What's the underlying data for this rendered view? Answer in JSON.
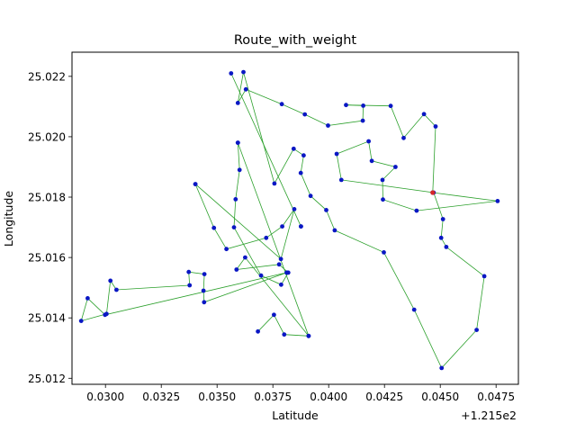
{
  "chart_data": {
    "type": "scatter",
    "title": "Route_with_weight",
    "xlabel": "Latitude",
    "ylabel": "Longitude",
    "offset_label": "+1.215e2",
    "xlim": [
      0.0285,
      0.0485
    ],
    "ylim": [
      25.0118,
      25.0228
    ],
    "x_ticks": [
      0.03,
      0.0325,
      0.035,
      0.0375,
      0.04,
      0.0425,
      0.045,
      0.0475
    ],
    "x_tick_labels": [
      "0.0300",
      "0.0325",
      "0.0350",
      "0.0375",
      "0.0400",
      "0.0425",
      "0.0450",
      "0.0475"
    ],
    "y_ticks": [
      25.012,
      25.014,
      25.016,
      25.018,
      25.02,
      25.022
    ],
    "y_tick_labels": [
      "25.012",
      "25.014",
      "25.016",
      "25.018",
      "25.020",
      "25.022"
    ],
    "grid": false,
    "colors": {
      "route": "#2ca02c",
      "stop": "#0a17c4",
      "start": "#d62728"
    },
    "start": [
      0.04466,
      25.01815
    ],
    "route": [
      [
        0.04466,
        25.01815
      ],
      [
        0.04757,
        25.01787
      ],
      [
        0.04394,
        25.01755
      ],
      [
        0.04243,
        25.01792
      ],
      [
        0.04241,
        25.01857
      ],
      [
        0.04299,
        25.019
      ],
      [
        0.04193,
        25.0192
      ],
      [
        0.04179,
        25.01985
      ],
      [
        0.04036,
        25.01943
      ],
      [
        0.04057,
        25.01857
      ],
      [
        0.0447,
        25.01815
      ],
      [
        0.04512,
        25.01727
      ],
      [
        0.04504,
        25.01665
      ],
      [
        0.04527,
        25.01635
      ],
      [
        0.04697,
        25.01538
      ],
      [
        0.04663,
        25.0136
      ],
      [
        0.04506,
        25.01234
      ],
      [
        0.04383,
        25.01427
      ],
      [
        0.04247,
        25.01617
      ],
      [
        0.04027,
        25.0169
      ],
      [
        0.03989,
        25.01757
      ],
      [
        0.03919,
        25.01804
      ],
      [
        0.03875,
        25.0188
      ],
      [
        0.03888,
        25.01938
      ],
      [
        0.03843,
        25.0196
      ],
      [
        0.03757,
        25.01845
      ],
      [
        0.03618,
        25.02214
      ],
      [
        0.03593,
        25.02112
      ],
      [
        0.03629,
        25.02157
      ],
      [
        0.0379,
        25.02108
      ],
      [
        0.03893,
        25.02074
      ],
      [
        0.03997,
        25.02037
      ],
      [
        0.04153,
        25.02053
      ],
      [
        0.04155,
        25.02103
      ],
      [
        0.04078,
        25.02105
      ],
      [
        0.04278,
        25.02102
      ],
      [
        0.04336,
        25.01996
      ],
      [
        0.04427,
        25.02075
      ],
      [
        0.04479,
        25.02034
      ],
      [
        0.04466,
        25.01815
      ],
      [
        0.04466,
        25.01815
      ]
    ],
    "route2": [
      [
        0.03876,
        25.01703
      ],
      [
        0.03563,
        25.0221
      ],
      [
        0.03876,
        25.01703
      ]
    ],
    "route3": [
      [
        0.03593,
        25.0198
      ],
      [
        0.03601,
        25.0189
      ],
      [
        0.03583,
        25.01793
      ],
      [
        0.03576,
        25.017
      ],
      [
        0.03697,
        25.0154
      ],
      [
        0.03787,
        25.0151
      ],
      [
        0.03819,
        25.0155
      ],
      [
        0.03778,
        25.01577
      ],
      [
        0.03587,
        25.0156
      ],
      [
        0.03626,
        25.016
      ],
      [
        0.0391,
        25.0134
      ],
      [
        0.03593,
        25.0198
      ]
    ],
    "route4": [
      [
        0.03403,
        25.01843
      ],
      [
        0.03486,
        25.01698
      ],
      [
        0.03542,
        25.01628
      ],
      [
        0.0372,
        25.01665
      ],
      [
        0.03792,
        25.01703
      ],
      [
        0.03846,
        25.0176
      ],
      [
        0.03786,
        25.01595
      ],
      [
        0.03403,
        25.01843
      ]
    ],
    "route5": [
      [
        0.03812,
        25.0155
      ],
      [
        0.02998,
        25.0141
      ],
      [
        0.0292,
        25.01465
      ],
      [
        0.02891,
        25.0139
      ],
      [
        0.03005,
        25.01413
      ],
      [
        0.03022,
        25.01523
      ],
      [
        0.03049,
        25.01493
      ],
      [
        0.03377,
        25.01508
      ],
      [
        0.03373,
        25.01552
      ],
      [
        0.03443,
        25.01545
      ],
      [
        0.03439,
        25.0149
      ],
      [
        0.03442,
        25.01452
      ],
      [
        0.03812,
        25.0155
      ]
    ],
    "route6": [
      [
        0.03683,
        25.01355
      ],
      [
        0.03755,
        25.0141
      ],
      [
        0.03801,
        25.01345
      ],
      [
        0.0391,
        25.0134
      ]
    ]
  }
}
